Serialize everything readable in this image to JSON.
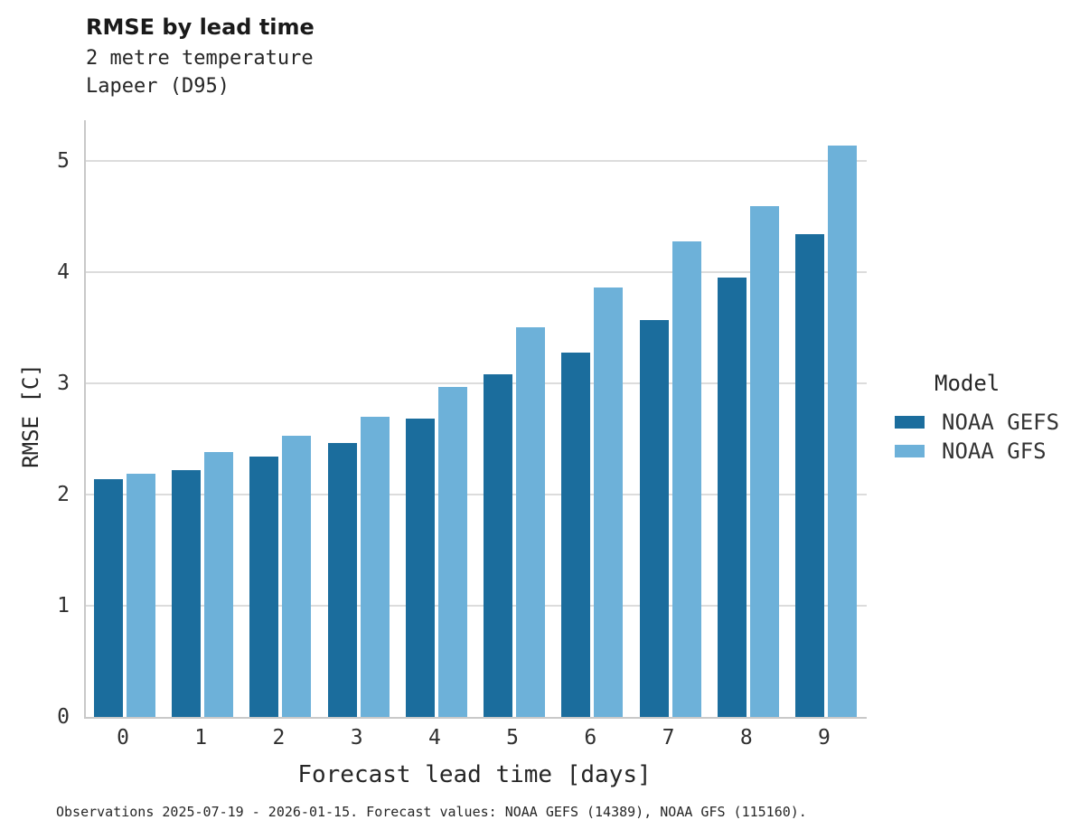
{
  "chart_data": {
    "type": "bar",
    "title": "RMSE by lead time",
    "subtitle_line1": "2 metre temperature",
    "subtitle_line2": "Lapeer (D95)",
    "xlabel": "Forecast lead time [days]",
    "ylabel": "RMSE [C]",
    "categories": [
      "0",
      "1",
      "2",
      "3",
      "4",
      "5",
      "6",
      "7",
      "8",
      "9"
    ],
    "series": [
      {
        "name": "NOAA GEFS",
        "color": "#1b6d9d",
        "values": [
          2.14,
          2.22,
          2.34,
          2.46,
          2.68,
          3.08,
          3.28,
          3.57,
          3.95,
          4.34
        ]
      },
      {
        "name": "NOAA GFS",
        "color": "#6db1d9",
        "values": [
          2.19,
          2.38,
          2.53,
          2.7,
          2.97,
          3.5,
          3.86,
          4.28,
          4.59,
          5.14
        ]
      }
    ],
    "yticks": [
      0,
      1,
      2,
      3,
      4,
      5
    ],
    "ylim": [
      0,
      5.4
    ],
    "grid": true,
    "legend": {
      "title": "Model",
      "position": "right"
    },
    "caption": "Observations 2025-07-19 - 2026-01-15. Forecast values: NOAA GEFS (14389), NOAA GFS (115160)."
  },
  "colors": {
    "grid": "#dcdcdc",
    "spine": "#c9c9c9",
    "text": "#262626",
    "tick_text": "#303030"
  }
}
